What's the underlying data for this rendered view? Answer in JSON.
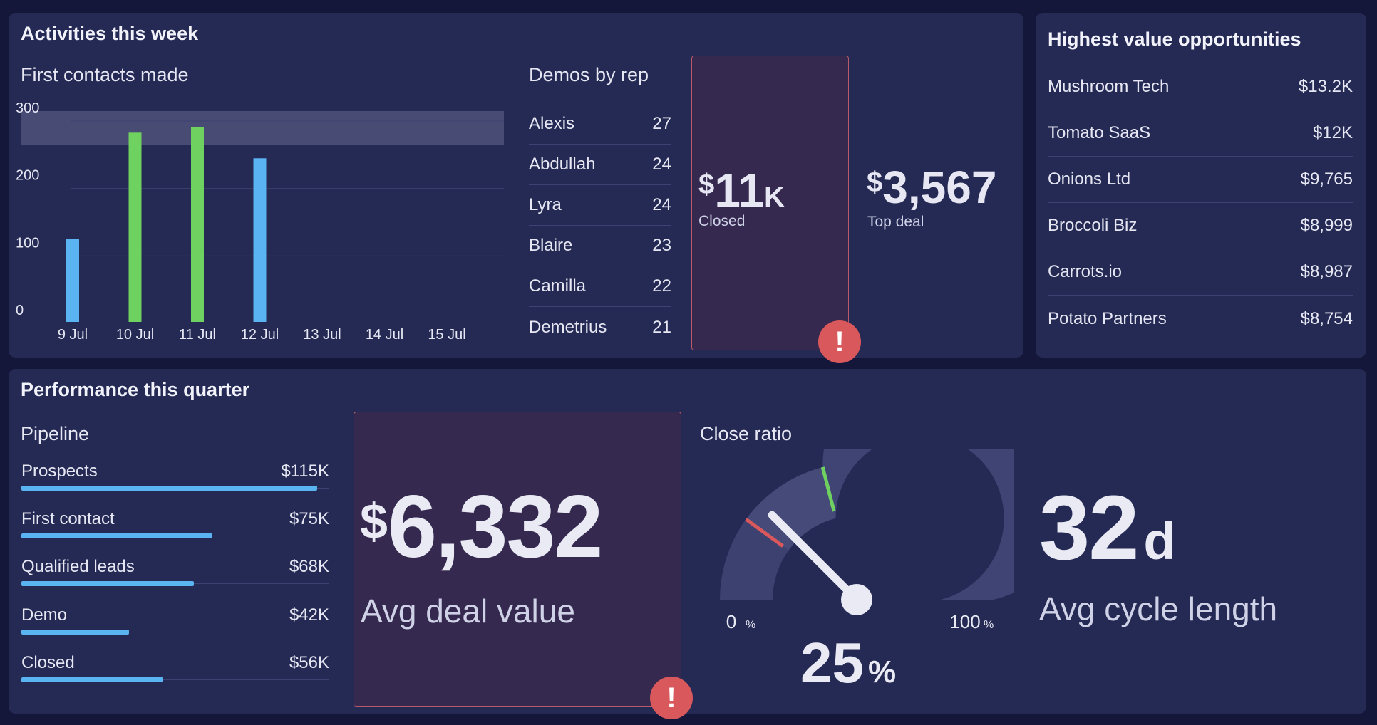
{
  "activities": {
    "title": "Activities this week",
    "first_contacts_title": "First contacts made",
    "demos_title": "Demos by rep",
    "demos": [
      {
        "name": "Alexis",
        "value": "27"
      },
      {
        "name": "Abdullah",
        "value": "24"
      },
      {
        "name": "Lyra",
        "value": "24"
      },
      {
        "name": "Blaire",
        "value": "23"
      },
      {
        "name": "Camilla",
        "value": "22"
      },
      {
        "name": "Demetrius",
        "value": "21"
      }
    ],
    "closed": {
      "currency": "$",
      "value": "11",
      "suffix": "K",
      "label": "Closed",
      "alert": "!"
    },
    "top_deal": {
      "currency": "$",
      "value": "3,567",
      "label": "Top deal"
    }
  },
  "opportunities": {
    "title": "Highest value opportunities",
    "items": [
      {
        "name": "Mushroom Tech",
        "value": "$13.2K"
      },
      {
        "name": "Tomato SaaS",
        "value": "$12K"
      },
      {
        "name": "Onions Ltd",
        "value": "$9,765"
      },
      {
        "name": "Broccoli Biz",
        "value": "$8,999"
      },
      {
        "name": "Carrots.io",
        "value": "$8,987"
      },
      {
        "name": "Potato Partners",
        "value": "$8,754"
      }
    ]
  },
  "performance": {
    "title": "Performance this quarter",
    "pipeline_title": "Pipeline",
    "pipeline": [
      {
        "label": "Prospects",
        "value": "$115K",
        "fraction": 0.96
      },
      {
        "label": "First contact",
        "value": "$75K",
        "fraction": 0.62
      },
      {
        "label": "Qualified leads",
        "value": "$68K",
        "fraction": 0.56
      },
      {
        "label": "Demo",
        "value": "$42K",
        "fraction": 0.35
      },
      {
        "label": "Closed",
        "value": "$56K",
        "fraction": 0.46
      }
    ],
    "avg_deal": {
      "currency": "$",
      "value": "6,332",
      "label": "Avg deal value",
      "alert": "!"
    },
    "close_ratio": {
      "title": "Close ratio",
      "value": "25",
      "unit": "%",
      "min_label": "0",
      "max_label": "100",
      "tick_unit": "%",
      "percent": 25,
      "red_marker": 20,
      "green_marker": 42
    },
    "cycle": {
      "value": "32",
      "unit": "d",
      "label": "Avg cycle length"
    }
  },
  "colors": {
    "background": "#15173a",
    "panel": "#252a55",
    "bar_blue": "#5ab4f2",
    "bar_green": "#6fd160",
    "alert_red": "#d9585c",
    "band": "#484c74"
  },
  "chart_data": {
    "type": "bar",
    "categories": [
      "9 Jul",
      "10 Jul",
      "11 Jul",
      "12 Jul",
      "13 Jul",
      "14 Jul",
      "15 Jul"
    ],
    "values": [
      110,
      268,
      276,
      230,
      null,
      null,
      null
    ],
    "highlighted": [
      false,
      true,
      true,
      false,
      false,
      false,
      false
    ],
    "target_band": [
      250,
      300
    ],
    "yticks": [
      0,
      100,
      200,
      300
    ],
    "ylim": [
      0,
      300
    ],
    "title": "First contacts made",
    "xlabel": "",
    "ylabel": "",
    "grid": true
  }
}
